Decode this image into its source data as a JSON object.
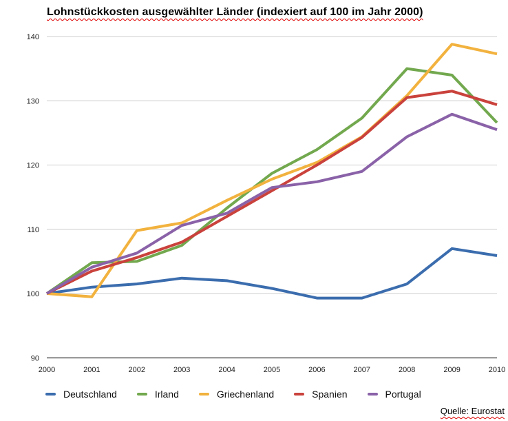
{
  "title": "Lohnstückkosten ausgewählter Länder (indexiert auf 100 im Jahr 2000)",
  "source": "Quelle: Eurostat",
  "chart_data": {
    "type": "line",
    "title": "Lohnstückkosten ausgewählter Länder (indexiert auf 100 im Jahr 2000)",
    "xlabel": "",
    "ylabel": "",
    "x": [
      2000,
      2001,
      2002,
      2003,
      2004,
      2005,
      2006,
      2007,
      2008,
      2009,
      2010
    ],
    "ylim": [
      90,
      140
    ],
    "ytick_step": 10,
    "grid": true,
    "legend_position": "bottom",
    "axis_color": "#898989",
    "gridline_color": "#cccccc",
    "tick_label_color": "#222222",
    "series": [
      {
        "name": "Deutschland",
        "color": "#3B6DAE",
        "values": [
          100,
          101,
          101.5,
          102.4,
          102,
          100.8,
          99.3,
          99.3,
          101.5,
          107,
          105.9
        ]
      },
      {
        "name": "Irland",
        "color": "#72A84E",
        "values": [
          100,
          104.8,
          105,
          107.5,
          113.3,
          118.7,
          122.4,
          127.3,
          135,
          134,
          126.6
        ]
      },
      {
        "name": "Griechenland",
        "color": "#F2B23E",
        "values": [
          100,
          99.5,
          109.8,
          111,
          114.5,
          117.8,
          120.4,
          124.4,
          130.8,
          138.8,
          137.3
        ]
      },
      {
        "name": "Spanien",
        "color": "#CA423C",
        "values": [
          100,
          103.5,
          105.6,
          108,
          112,
          116,
          120,
          124.3,
          130.5,
          131.5,
          129.4
        ]
      },
      {
        "name": "Portugal",
        "color": "#8A62A8",
        "values": [
          100,
          104.1,
          106.3,
          110.6,
          112.5,
          116.5,
          117.4,
          119,
          124.4,
          127.9,
          125.5
        ]
      }
    ]
  }
}
